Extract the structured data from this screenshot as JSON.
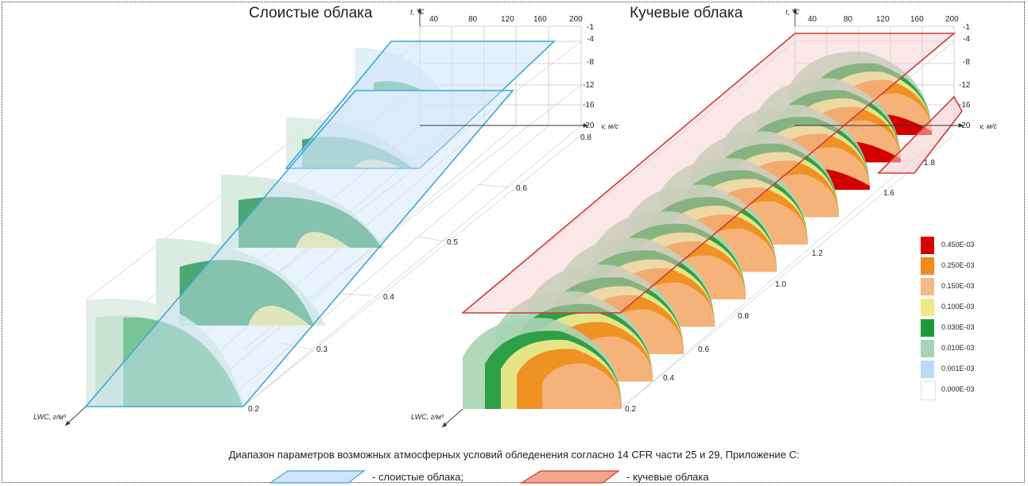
{
  "titles": {
    "left": "Слоистые облака",
    "right": "Кучевые облака"
  },
  "axes": {
    "temp_label": "t, °C",
    "velocity_label": "v, м/с",
    "lwc_label": "LWC, г/м³",
    "velocity_ticks": [
      "40",
      "80",
      "120",
      "160",
      "200"
    ],
    "temp_ticks": [
      "-1",
      "-4",
      "-8",
      "-12",
      "-16",
      "-20"
    ],
    "lwc_ticks_left": [
      "0.2",
      "0.3",
      "0.4",
      "0.5",
      "0.6",
      "0.8"
    ],
    "lwc_ticks_right": [
      "0.2",
      "0.4",
      "0.6",
      "0.8",
      "1.0",
      "1.2",
      "1.6",
      "1.8"
    ]
  },
  "legend": [
    {
      "label": "0.450E-03",
      "color": "#d40000"
    },
    {
      "label": "0.250E-03",
      "color": "#f08c1e"
    },
    {
      "label": "0.150E-03",
      "color": "#f6b98a"
    },
    {
      "label": "0.100E-03",
      "color": "#efe98c"
    },
    {
      "label": "0.030E-03",
      "color": "#1f9a3a"
    },
    {
      "label": "0.010E-03",
      "color": "#a8d4b4"
    },
    {
      "label": "0.001E-03",
      "color": "#b9dcf6"
    },
    {
      "label": "0.000E-03",
      "color": "#ffffff"
    }
  ],
  "footer": {
    "caption": "Диапазон параметров возможных атмосферных условий обледенения согласно 14 CFR части 25 и 29, Приложение С:",
    "key_stratus": "- слоистые облака;",
    "key_cumulus": "- кучевые облака"
  },
  "colors": {
    "stratus_plane": "#cfe4fb",
    "stratus_edge": "#3da7d9",
    "cumulus_plane": "#f7caca",
    "cumulus_edge": "#d03a3a"
  }
}
